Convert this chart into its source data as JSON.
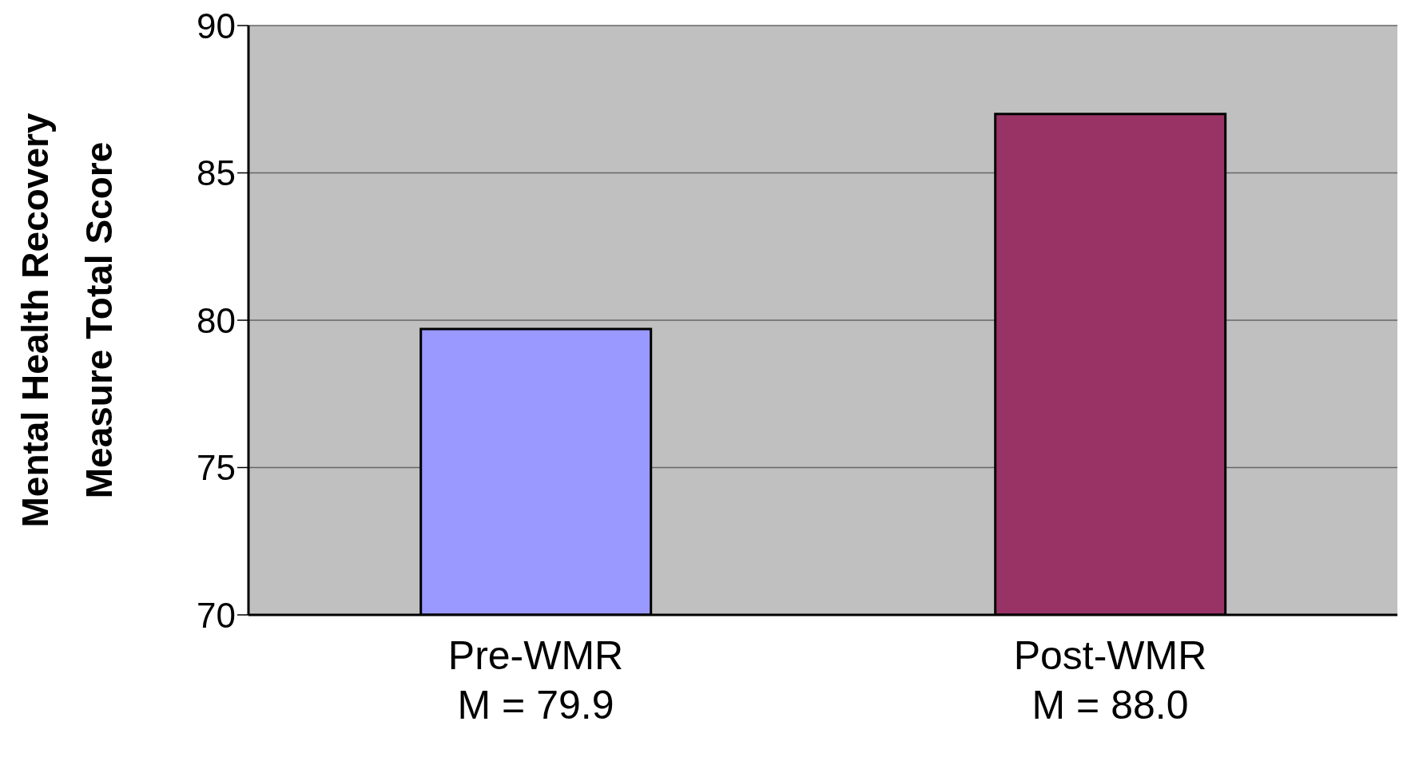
{
  "chart_data": {
    "type": "bar",
    "ylabel": "Mental Health Recovery\nMeasure Total Score",
    "categories": [
      "Pre-WMR\nM = 79.9",
      "Post-WMR\nM = 88.0"
    ],
    "values": [
      79.7,
      87.0
    ],
    "colors": [
      "#9999ff",
      "#993366"
    ],
    "ylim": [
      70,
      90
    ],
    "yticks": [
      70,
      75,
      80,
      85,
      90
    ],
    "grid": "y"
  }
}
